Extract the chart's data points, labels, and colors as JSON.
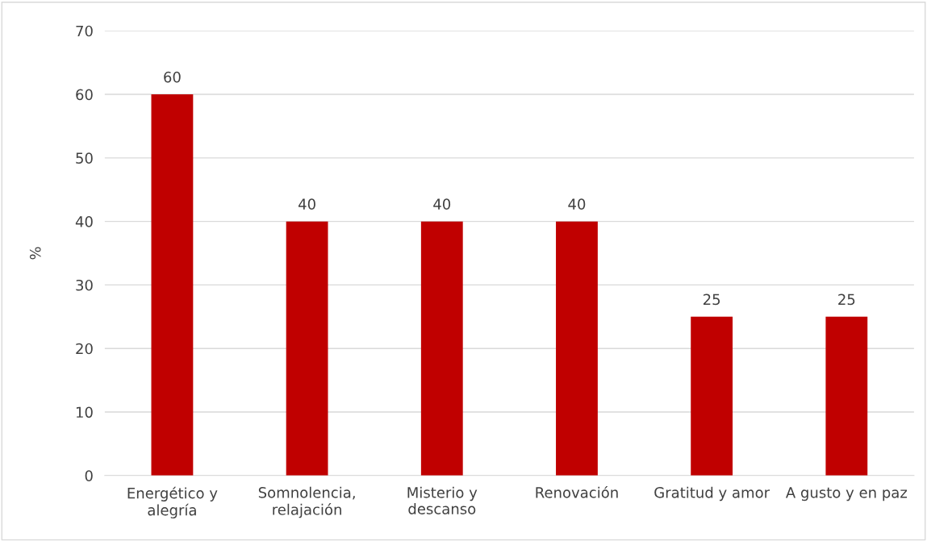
{
  "chart_data": {
    "type": "bar",
    "ylabel": "%",
    "categories": [
      "Energético y\nalegría",
      "Somnolencia,\nrelajación",
      "Misterio y\ndescanso",
      "Renovación",
      "Gratitud y amor",
      "A gusto y en paz"
    ],
    "values": [
      60,
      40,
      40,
      40,
      25,
      25
    ],
    "color": "#c00000",
    "ylim": [
      0,
      70
    ],
    "yticks": [
      0,
      10,
      20,
      30,
      40,
      50,
      60,
      70
    ],
    "grid": "y",
    "data_labels": true
  }
}
